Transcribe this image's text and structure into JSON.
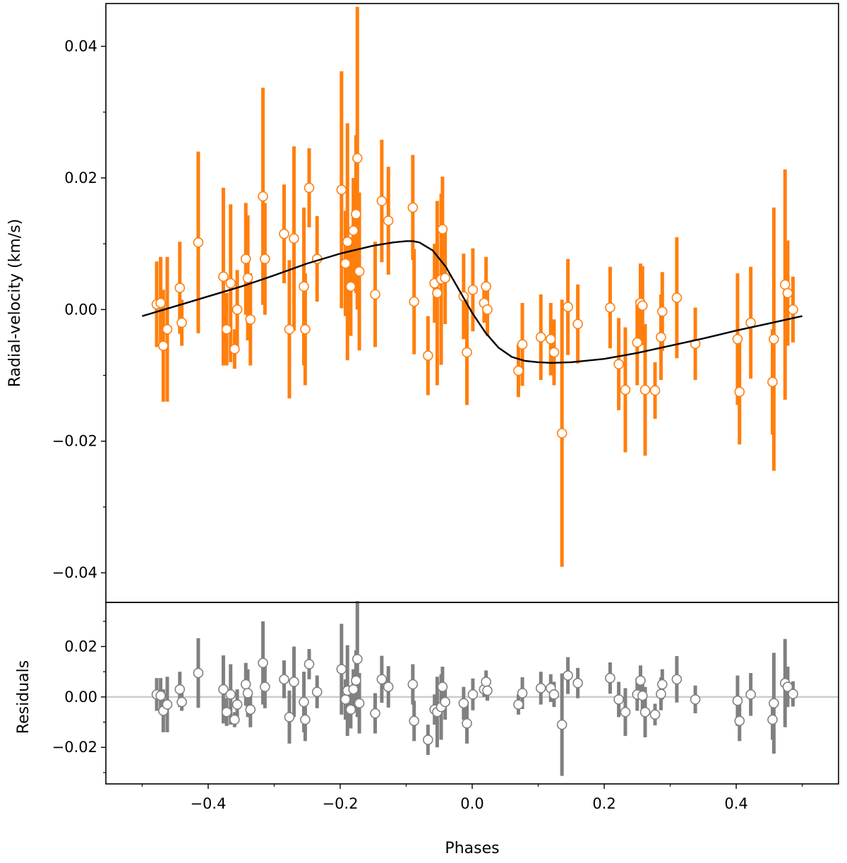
{
  "colors": {
    "rv_points": "#ff7f0e",
    "residual_points": "#808080",
    "model_line": "#000000",
    "zero_line": "#cccccc",
    "marker_face": "#ffffff"
  },
  "chart_data": [
    {
      "type": "scatter",
      "panel": "top",
      "ylabel": "Radial-velocity (km/s)",
      "xlim": [
        -0.555,
        0.555
      ],
      "ylim": [
        -0.0445,
        0.0465
      ],
      "yticks": [
        -0.04,
        -0.02,
        0.0,
        0.02,
        0.04
      ],
      "ytick_labels": [
        "−0.04",
        "−0.02",
        "0.00",
        "0.02",
        "0.04"
      ],
      "series": [
        {
          "marker": "open-circle",
          "error_bars": true,
          "points": [
            {
              "x": -0.478,
              "y": 0.0008,
              "err": 0.0065
            },
            {
              "x": -0.472,
              "y": 0.001,
              "err": 0.007
            },
            {
              "x": -0.468,
              "y": -0.0055,
              "err": 0.0085
            },
            {
              "x": -0.462,
              "y": -0.003,
              "err": 0.011
            },
            {
              "x": -0.443,
              "y": 0.0033,
              "err": 0.007
            },
            {
              "x": -0.44,
              "y": -0.002,
              "err": 0.0035
            },
            {
              "x": -0.415,
              "y": 0.0102,
              "err": 0.0138
            },
            {
              "x": -0.377,
              "y": 0.005,
              "err": 0.0135
            },
            {
              "x": -0.372,
              "y": -0.003,
              "err": 0.0055
            },
            {
              "x": -0.366,
              "y": 0.004,
              "err": 0.012
            },
            {
              "x": -0.36,
              "y": -0.006,
              "err": 0.003
            },
            {
              "x": -0.356,
              "y": 0.0,
              "err": 0.006
            },
            {
              "x": -0.343,
              "y": 0.0077,
              "err": 0.0085
            },
            {
              "x": -0.34,
              "y": 0.0048,
              "err": 0.0095
            },
            {
              "x": -0.336,
              "y": -0.0015,
              "err": 0.007
            },
            {
              "x": -0.317,
              "y": 0.0172,
              "err": 0.0165
            },
            {
              "x": -0.314,
              "y": 0.0077,
              "err": 0.0085
            },
            {
              "x": -0.285,
              "y": 0.0115,
              "err": 0.0075
            },
            {
              "x": -0.277,
              "y": -0.003,
              "err": 0.0105
            },
            {
              "x": -0.27,
              "y": 0.0108,
              "err": 0.014
            },
            {
              "x": -0.255,
              "y": 0.0035,
              "err": 0.012
            },
            {
              "x": -0.253,
              "y": -0.003,
              "err": 0.0085
            },
            {
              "x": -0.247,
              "y": 0.0185,
              "err": 0.006
            },
            {
              "x": -0.235,
              "y": 0.0077,
              "err": 0.0065
            },
            {
              "x": -0.198,
              "y": 0.0182,
              "err": 0.018
            },
            {
              "x": -0.192,
              "y": 0.007,
              "err": 0.008
            },
            {
              "x": -0.189,
              "y": 0.0103,
              "err": 0.018
            },
            {
              "x": -0.184,
              "y": 0.0035,
              "err": 0.0075
            },
            {
              "x": -0.18,
              "y": 0.012,
              "err": 0.008
            },
            {
              "x": -0.176,
              "y": 0.0145,
              "err": 0.012
            },
            {
              "x": -0.174,
              "y": 0.023,
              "err": 0.023
            },
            {
              "x": -0.171,
              "y": 0.0058,
              "err": 0.012
            },
            {
              "x": -0.147,
              "y": 0.0023,
              "err": 0.008
            },
            {
              "x": -0.137,
              "y": 0.0165,
              "err": 0.0093
            },
            {
              "x": -0.127,
              "y": 0.0135,
              "err": 0.0082
            },
            {
              "x": -0.09,
              "y": 0.0155,
              "err": 0.008
            },
            {
              "x": -0.088,
              "y": 0.0012,
              "err": 0.008
            },
            {
              "x": -0.067,
              "y": -0.007,
              "err": 0.006
            },
            {
              "x": -0.057,
              "y": 0.004,
              "err": 0.006
            },
            {
              "x": -0.053,
              "y": 0.0025,
              "err": 0.014
            },
            {
              "x": -0.047,
              "y": 0.0046,
              "err": 0.013
            },
            {
              "x": -0.045,
              "y": 0.0122,
              "err": 0.008
            },
            {
              "x": -0.041,
              "y": 0.0048,
              "err": 0.007
            },
            {
              "x": -0.013,
              "y": 0.002,
              "err": 0.0065
            },
            {
              "x": -0.008,
              "y": -0.0065,
              "err": 0.008
            },
            {
              "x": 0.001,
              "y": 0.003,
              "err": 0.0063
            },
            {
              "x": 0.018,
              "y": 0.001,
              "err": 0.003
            },
            {
              "x": 0.021,
              "y": 0.0035,
              "err": 0.0045
            },
            {
              "x": 0.023,
              "y": 0.0,
              "err": 0.004
            },
            {
              "x": 0.07,
              "y": -0.0093,
              "err": 0.004
            },
            {
              "x": 0.076,
              "y": -0.0053,
              "err": 0.0063
            },
            {
              "x": 0.104,
              "y": -0.0042,
              "err": 0.0065
            },
            {
              "x": 0.119,
              "y": -0.0045,
              "err": 0.0055
            },
            {
              "x": 0.124,
              "y": -0.0065,
              "err": 0.005
            },
            {
              "x": 0.136,
              "y": -0.0188,
              "err": 0.0203
            },
            {
              "x": 0.145,
              "y": 0.0004,
              "err": 0.0073
            },
            {
              "x": 0.16,
              "y": -0.0022,
              "err": 0.006
            },
            {
              "x": 0.209,
              "y": 0.0003,
              "err": 0.0062
            },
            {
              "x": 0.222,
              "y": -0.0083,
              "err": 0.007
            },
            {
              "x": 0.232,
              "y": -0.0122,
              "err": 0.0095
            },
            {
              "x": 0.25,
              "y": -0.005,
              "err": 0.0065
            },
            {
              "x": 0.255,
              "y": 0.001,
              "err": 0.006
            },
            {
              "x": 0.258,
              "y": 0.0006,
              "err": 0.006
            },
            {
              "x": 0.262,
              "y": -0.0122,
              "err": 0.01
            },
            {
              "x": 0.277,
              "y": -0.0123,
              "err": 0.0043
            },
            {
              "x": 0.286,
              "y": -0.0042,
              "err": 0.0065
            },
            {
              "x": 0.288,
              "y": -0.0003,
              "err": 0.006
            },
            {
              "x": 0.31,
              "y": 0.0018,
              "err": 0.0092
            },
            {
              "x": 0.338,
              "y": -0.0052,
              "err": 0.0055
            },
            {
              "x": 0.402,
              "y": -0.0045,
              "err": 0.01
            },
            {
              "x": 0.405,
              "y": -0.0125,
              "err": 0.008
            },
            {
              "x": 0.422,
              "y": -0.002,
              "err": 0.0085
            },
            {
              "x": 0.455,
              "y": -0.011,
              "err": 0.008
            },
            {
              "x": 0.457,
              "y": -0.0045,
              "err": 0.02
            },
            {
              "x": 0.474,
              "y": 0.0038,
              "err": 0.0175
            },
            {
              "x": 0.478,
              "y": 0.0025,
              "err": 0.008
            },
            {
              "x": 0.486,
              "y": 0.0,
              "err": 0.005
            }
          ]
        },
        {
          "type": "line",
          "model": true,
          "x": [
            -0.5,
            -0.45,
            -0.4,
            -0.35,
            -0.3,
            -0.25,
            -0.2,
            -0.15,
            -0.12,
            -0.1,
            -0.09,
            -0.08,
            -0.06,
            -0.04,
            -0.02,
            0.0,
            0.02,
            0.04,
            0.06,
            0.08,
            0.1,
            0.12,
            0.15,
            0.2,
            0.25,
            0.3,
            0.35,
            0.4,
            0.45,
            0.5
          ],
          "y": [
            -0.001,
            0.0005,
            0.002,
            0.0035,
            0.0052,
            0.007,
            0.0085,
            0.0097,
            0.0102,
            0.0104,
            0.0104,
            0.0102,
            0.009,
            0.0065,
            0.003,
            -0.0005,
            -0.0035,
            -0.0058,
            -0.0072,
            -0.0078,
            -0.008,
            -0.0081,
            -0.008,
            -0.0075,
            -0.0066,
            -0.0055,
            -0.0044,
            -0.0032,
            -0.0021,
            -0.001
          ]
        }
      ]
    },
    {
      "type": "scatter",
      "panel": "bottom",
      "xlabel": "Phases",
      "ylabel": "Residuals",
      "xlim": [
        -0.555,
        0.555
      ],
      "ylim": [
        -0.0345,
        0.0375
      ],
      "xticks": [
        -0.4,
        -0.2,
        0.0,
        0.2,
        0.4
      ],
      "xtick_labels": [
        "−0.4",
        "−0.2",
        "0.0",
        "0.2",
        "0.4"
      ],
      "yticks": [
        -0.02,
        0.0,
        0.02
      ],
      "ytick_labels": [
        "−0.02",
        "0.00",
        "0.02"
      ],
      "zero_line": true,
      "series": [
        {
          "marker": "open-circle",
          "error_bars": true,
          "points": [
            {
              "x": -0.478,
              "y": 0.001,
              "err": 0.0065
            },
            {
              "x": -0.472,
              "y": 0.0005,
              "err": 0.007
            },
            {
              "x": -0.468,
              "y": -0.0055,
              "err": 0.0085
            },
            {
              "x": -0.462,
              "y": -0.003,
              "err": 0.011
            },
            {
              "x": -0.443,
              "y": 0.003,
              "err": 0.007
            },
            {
              "x": -0.44,
              "y": -0.002,
              "err": 0.0035
            },
            {
              "x": -0.415,
              "y": 0.0095,
              "err": 0.0138
            },
            {
              "x": -0.377,
              "y": 0.003,
              "err": 0.0135
            },
            {
              "x": -0.372,
              "y": -0.006,
              "err": 0.0055
            },
            {
              "x": -0.366,
              "y": 0.001,
              "err": 0.012
            },
            {
              "x": -0.36,
              "y": -0.009,
              "err": 0.003
            },
            {
              "x": -0.356,
              "y": -0.003,
              "err": 0.006
            },
            {
              "x": -0.343,
              "y": 0.005,
              "err": 0.0085
            },
            {
              "x": -0.34,
              "y": 0.0015,
              "err": 0.0095
            },
            {
              "x": -0.336,
              "y": -0.005,
              "err": 0.007
            },
            {
              "x": -0.317,
              "y": 0.0135,
              "err": 0.0165
            },
            {
              "x": -0.314,
              "y": 0.004,
              "err": 0.0085
            },
            {
              "x": -0.285,
              "y": 0.007,
              "err": 0.0075
            },
            {
              "x": -0.277,
              "y": -0.008,
              "err": 0.0105
            },
            {
              "x": -0.27,
              "y": 0.006,
              "err": 0.014
            },
            {
              "x": -0.255,
              "y": -0.002,
              "err": 0.012
            },
            {
              "x": -0.253,
              "y": -0.009,
              "err": 0.0085
            },
            {
              "x": -0.247,
              "y": 0.013,
              "err": 0.006
            },
            {
              "x": -0.235,
              "y": 0.002,
              "err": 0.0065
            },
            {
              "x": -0.198,
              "y": 0.011,
              "err": 0.018
            },
            {
              "x": -0.192,
              "y": -0.001,
              "err": 0.008
            },
            {
              "x": -0.189,
              "y": 0.0025,
              "err": 0.018
            },
            {
              "x": -0.184,
              "y": -0.005,
              "err": 0.0075
            },
            {
              "x": -0.18,
              "y": 0.003,
              "err": 0.008
            },
            {
              "x": -0.176,
              "y": 0.0065,
              "err": 0.012
            },
            {
              "x": -0.174,
              "y": 0.015,
              "err": 0.023
            },
            {
              "x": -0.171,
              "y": -0.0025,
              "err": 0.012
            },
            {
              "x": -0.147,
              "y": -0.0065,
              "err": 0.008
            },
            {
              "x": -0.137,
              "y": 0.007,
              "err": 0.0093
            },
            {
              "x": -0.127,
              "y": 0.004,
              "err": 0.0082
            },
            {
              "x": -0.09,
              "y": 0.005,
              "err": 0.008
            },
            {
              "x": -0.088,
              "y": -0.0095,
              "err": 0.008
            },
            {
              "x": -0.067,
              "y": -0.017,
              "err": 0.006
            },
            {
              "x": -0.057,
              "y": -0.005,
              "err": 0.006
            },
            {
              "x": -0.053,
              "y": -0.006,
              "err": 0.014
            },
            {
              "x": -0.047,
              "y": -0.004,
              "err": 0.013
            },
            {
              "x": -0.045,
              "y": 0.004,
              "err": 0.008
            },
            {
              "x": -0.041,
              "y": -0.002,
              "err": 0.007
            },
            {
              "x": -0.013,
              "y": -0.0025,
              "err": 0.0065
            },
            {
              "x": -0.008,
              "y": -0.0105,
              "err": 0.008
            },
            {
              "x": 0.001,
              "y": 0.001,
              "err": 0.0063
            },
            {
              "x": 0.018,
              "y": 0.003,
              "err": 0.003
            },
            {
              "x": 0.021,
              "y": 0.006,
              "err": 0.0045
            },
            {
              "x": 0.023,
              "y": 0.0025,
              "err": 0.004
            },
            {
              "x": 0.07,
              "y": -0.003,
              "err": 0.004
            },
            {
              "x": 0.076,
              "y": 0.0015,
              "err": 0.0063
            },
            {
              "x": 0.104,
              "y": 0.0035,
              "err": 0.0065
            },
            {
              "x": 0.119,
              "y": 0.0035,
              "err": 0.0055
            },
            {
              "x": 0.124,
              "y": 0.001,
              "err": 0.005
            },
            {
              "x": 0.136,
              "y": -0.011,
              "err": 0.0203
            },
            {
              "x": 0.145,
              "y": 0.0085,
              "err": 0.0073
            },
            {
              "x": 0.16,
              "y": 0.0055,
              "err": 0.006
            },
            {
              "x": 0.209,
              "y": 0.0075,
              "err": 0.0062
            },
            {
              "x": 0.222,
              "y": -0.001,
              "err": 0.007
            },
            {
              "x": 0.232,
              "y": -0.006,
              "err": 0.0095
            },
            {
              "x": 0.25,
              "y": 0.001,
              "err": 0.0065
            },
            {
              "x": 0.255,
              "y": 0.0065,
              "err": 0.006
            },
            {
              "x": 0.258,
              "y": 0.0005,
              "err": 0.006
            },
            {
              "x": 0.262,
              "y": -0.006,
              "err": 0.01
            },
            {
              "x": 0.277,
              "y": -0.007,
              "err": 0.0043
            },
            {
              "x": 0.286,
              "y": 0.0012,
              "err": 0.0065
            },
            {
              "x": 0.288,
              "y": 0.005,
              "err": 0.006
            },
            {
              "x": 0.31,
              "y": 0.007,
              "err": 0.0092
            },
            {
              "x": 0.338,
              "y": -0.001,
              "err": 0.0055
            },
            {
              "x": 0.402,
              "y": -0.0015,
              "err": 0.01
            },
            {
              "x": 0.405,
              "y": -0.0095,
              "err": 0.008
            },
            {
              "x": 0.422,
              "y": 0.001,
              "err": 0.0085
            },
            {
              "x": 0.455,
              "y": -0.009,
              "err": 0.008
            },
            {
              "x": 0.457,
              "y": -0.0025,
              "err": 0.02
            },
            {
              "x": 0.474,
              "y": 0.0055,
              "err": 0.0175
            },
            {
              "x": 0.478,
              "y": 0.004,
              "err": 0.008
            },
            {
              "x": 0.486,
              "y": 0.0012,
              "err": 0.005
            }
          ]
        }
      ]
    }
  ]
}
